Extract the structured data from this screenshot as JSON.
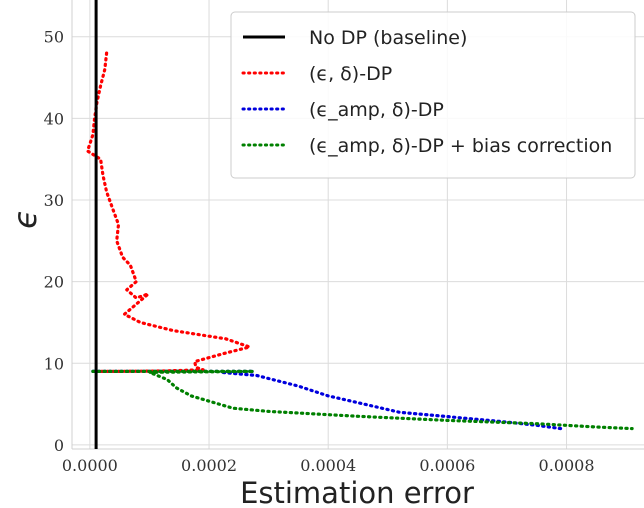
{
  "chart_data": {
    "type": "line",
    "xlabel": "Estimation error",
    "ylabel": "ϵ",
    "xlim": [
      -3e-05,
      0.00093
    ],
    "ylim": [
      -0.5,
      54.5
    ],
    "xticks": [
      0.0,
      0.0002,
      0.0004,
      0.0006,
      0.0008
    ],
    "xtick_labels": [
      "0.0000",
      "0.0002",
      "0.0004",
      "0.0006",
      "0.0008"
    ],
    "yticks": [
      0,
      10,
      20,
      30,
      40,
      50
    ],
    "ytick_labels": [
      "0",
      "10",
      "20",
      "30",
      "40",
      "50"
    ],
    "grid": true,
    "legend_position": "top-right",
    "series": [
      {
        "name": "No DP (baseline)",
        "color": "#000000",
        "style": "solid",
        "points": [
          [
            1.05e-05,
            -0.5
          ],
          [
            1.05e-05,
            54.5
          ]
        ]
      },
      {
        "name": "(ϵ, δ)-DP",
        "color": "#ff0000",
        "style": "dotted",
        "points": [
          [
            2.8e-05,
            48
          ],
          [
            2.5e-05,
            46
          ],
          [
            1.8e-05,
            44
          ],
          [
            1.2e-05,
            42
          ],
          [
            8e-06,
            40
          ],
          [
            5e-06,
            38
          ],
          [
            -4e-06,
            36
          ],
          [
            1.8e-05,
            35
          ],
          [
            2.2e-05,
            33
          ],
          [
            2.8e-05,
            31
          ],
          [
            3.8e-05,
            29
          ],
          [
            4.8e-05,
            27
          ],
          [
            4.5e-05,
            25
          ],
          [
            5.5e-05,
            23
          ],
          [
            6.8e-05,
            22
          ],
          [
            7.8e-05,
            20
          ],
          [
            6.2e-05,
            19
          ],
          [
            7.8e-05,
            18
          ],
          [
            9.8e-05,
            18.5
          ],
          [
            8.2e-05,
            17.5
          ],
          [
            5.8e-05,
            16
          ],
          [
            8.5e-05,
            15
          ],
          [
            0.00014,
            14
          ],
          [
            0.000228,
            13
          ],
          [
            0.000268,
            12
          ],
          [
            0.000225,
            11.2
          ],
          [
            0.000176,
            10.2
          ],
          [
            0.000178,
            9.5
          ],
          [
            0.00019,
            9.2
          ],
          [
            0.00012,
            9.05
          ],
          [
            4.5e-05,
            9
          ],
          [
            1e-05,
            9
          ]
        ]
      },
      {
        "name": "(ϵ_amp, δ)-DP",
        "color": "#0000dd",
        "style": "dotted",
        "points": [
          [
            5e-06,
            9
          ],
          [
            0.000275,
            9
          ],
          [
            0.00022,
            8.9
          ],
          [
            0.00028,
            8.5
          ],
          [
            0.00035,
            7.2
          ],
          [
            0.0004,
            6
          ],
          [
            0.00046,
            5
          ],
          [
            0.00052,
            4
          ],
          [
            0.00058,
            3.6
          ],
          [
            0.00064,
            3.2
          ],
          [
            0.0007,
            2.8
          ],
          [
            0.00075,
            2.4
          ],
          [
            0.00079,
            2
          ]
        ]
      },
      {
        "name": "(ϵ_amp, δ)-DP + bias correction",
        "color": "#008000",
        "style": "dotted",
        "points": [
          [
            5e-06,
            9
          ],
          [
            0.000275,
            9
          ],
          [
            0.0001,
            8.9
          ],
          [
            0.00013,
            8
          ],
          [
            0.000145,
            7
          ],
          [
            0.00017,
            6
          ],
          [
            0.00024,
            4.5
          ],
          [
            0.0003,
            4.1
          ],
          [
            0.00045,
            3.5
          ],
          [
            0.0006,
            3
          ],
          [
            0.00075,
            2.6
          ],
          [
            0.00085,
            2.2
          ],
          [
            0.00091,
            2
          ]
        ]
      }
    ]
  }
}
